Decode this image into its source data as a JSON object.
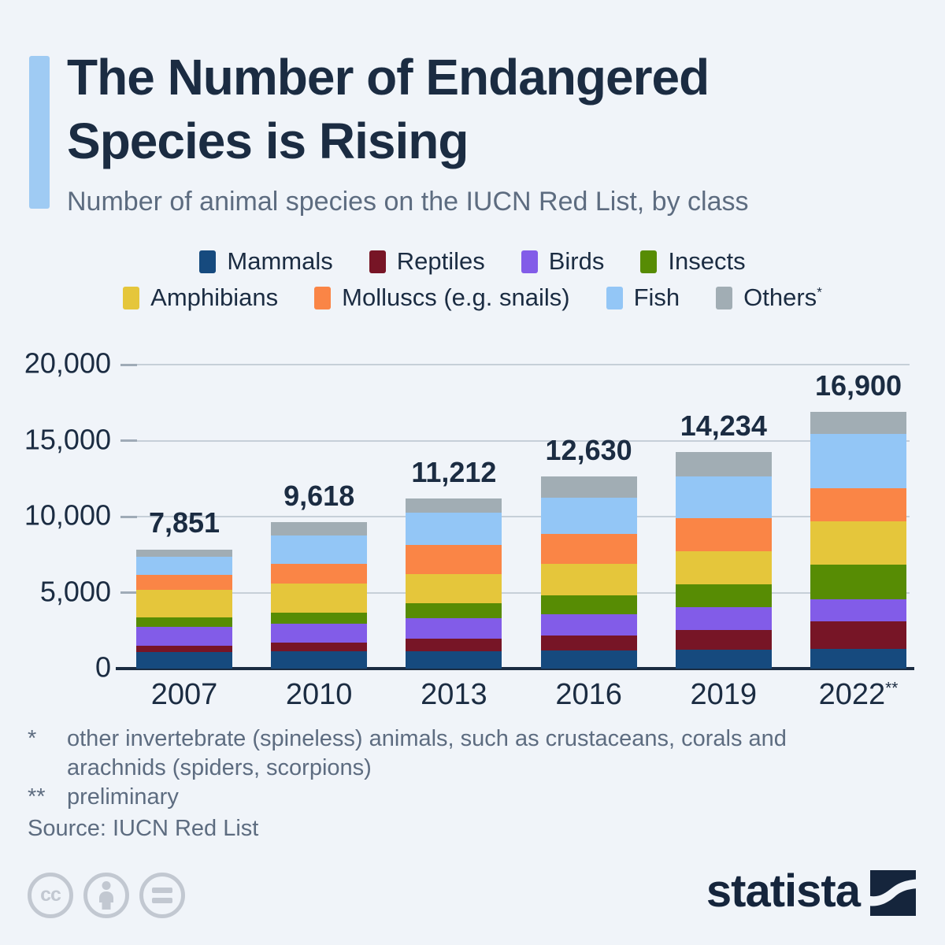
{
  "page": {
    "background": "#f0f4f9",
    "accent_color": "#9fcbf3",
    "text_dark": "#1b2c42",
    "text_gray": "#5d6c80"
  },
  "header": {
    "title_line1": "The Number of Endangered",
    "title_line2": "Species is Rising",
    "subtitle": "Number of animal species on the IUCN Red List, by class"
  },
  "chart_data": {
    "type": "bar",
    "stacked": true,
    "title": "Number of animal species on the IUCN Red List, by class",
    "categories": [
      "2007",
      "2010",
      "2013",
      "2016",
      "2019",
      "2022**"
    ],
    "totals": [
      7851,
      9618,
      11212,
      12630,
      14234,
      16900
    ],
    "total_labels": [
      "7,851",
      "9,618",
      "11,212",
      "12,630",
      "14,234",
      "16,900"
    ],
    "series": [
      {
        "name": "Mammals",
        "color": "#164a7e",
        "values": [
          1094,
          1131,
          1143,
          1204,
          1223,
          1310
        ]
      },
      {
        "name": "Reptiles",
        "color": "#771526",
        "values": [
          422,
          594,
          847,
          989,
          1307,
          1820
        ]
      },
      {
        "name": "Birds",
        "color": "#825ce8",
        "values": [
          1217,
          1240,
          1308,
          1375,
          1492,
          1420
        ]
      },
      {
        "name": "Insects",
        "color": "#578c04",
        "values": [
          623,
          733,
          993,
          1268,
          1537,
          2300
        ]
      },
      {
        "name": "Amphibians",
        "color": "#e5c63b",
        "values": [
          1808,
          1898,
          1948,
          2068,
          2157,
          2860
        ]
      },
      {
        "name": "Molluscs (e.g. snails)",
        "color": "#fa8546",
        "values": [
          978,
          1288,
          1898,
          1984,
          2187,
          2170
        ]
      },
      {
        "name": "Fish",
        "color": "#93c6f6",
        "values": [
          1201,
          1851,
          2110,
          2343,
          2730,
          3560
        ]
      },
      {
        "name": "Others*",
        "color": "#a1adb4",
        "values": [
          508,
          883,
          965,
          1399,
          1601,
          1460
        ]
      }
    ],
    "legend_rows": [
      [
        0,
        1,
        2,
        3
      ],
      [
        4,
        5,
        6,
        7
      ]
    ],
    "y_ticks": [
      {
        "label": "20,000",
        "value": 20000
      },
      {
        "label": "15,000",
        "value": 15000
      },
      {
        "label": "10,000",
        "value": 10000
      },
      {
        "label": "5,000",
        "value": 5000
      },
      {
        "label": "0",
        "value": 0
      }
    ],
    "ylim": [
      0,
      20000
    ],
    "xlabel": "",
    "ylabel": "",
    "grid": true,
    "legend_position": "top",
    "grid_color": "#c6cfd8",
    "axis_color": "#1b2c42"
  },
  "footnotes": {
    "fn1_marker": "*",
    "fn1_line1": "other invertebrate (spineless) animals, such as crustaceans, corals and",
    "fn1_line2": "arachnids (spiders, scorpions)",
    "fn2_marker": "**",
    "fn2_text": "preliminary"
  },
  "source": {
    "text": "Source: IUCN Red List"
  },
  "license": {
    "cc_text": "cc"
  },
  "branding": {
    "logo_text": "statista",
    "logo_color": "#15253c"
  }
}
